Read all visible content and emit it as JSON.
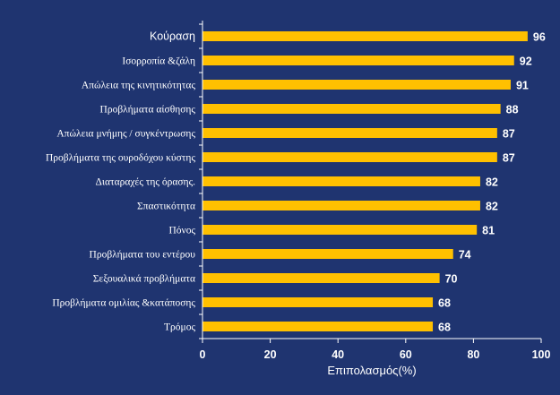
{
  "chart_data": {
    "type": "bar",
    "orientation": "horizontal",
    "title": "",
    "xlabel": "Επιπολασμός(%)",
    "ylabel": "",
    "xlim": [
      0,
      100
    ],
    "xticks": [
      0,
      20,
      40,
      60,
      80,
      100
    ],
    "grid": false,
    "legend": "none",
    "bar_color": "#ffc000",
    "categories": [
      "Κούραση",
      "Ισορροπία &ζάλη",
      "Απώλεια της κινητικότητας",
      "Προβλήματα αίσθησης",
      "Απώλεια μνήμης / συγκέντρωσης",
      "Προβλήματα της ουροδόχου κύστης",
      "Διαταραχές της όρασης.",
      "Σπαστικότητα",
      "Πόνος",
      "Προβλήματα του εντέρου",
      "Σεξουαλικά προβλήματα",
      "Προβλήματα ομιλίας &κατάποσης",
      "Τρόμος"
    ],
    "values": [
      96,
      92,
      91,
      88,
      87,
      87,
      82,
      82,
      81,
      74,
      70,
      68,
      68
    ]
  }
}
